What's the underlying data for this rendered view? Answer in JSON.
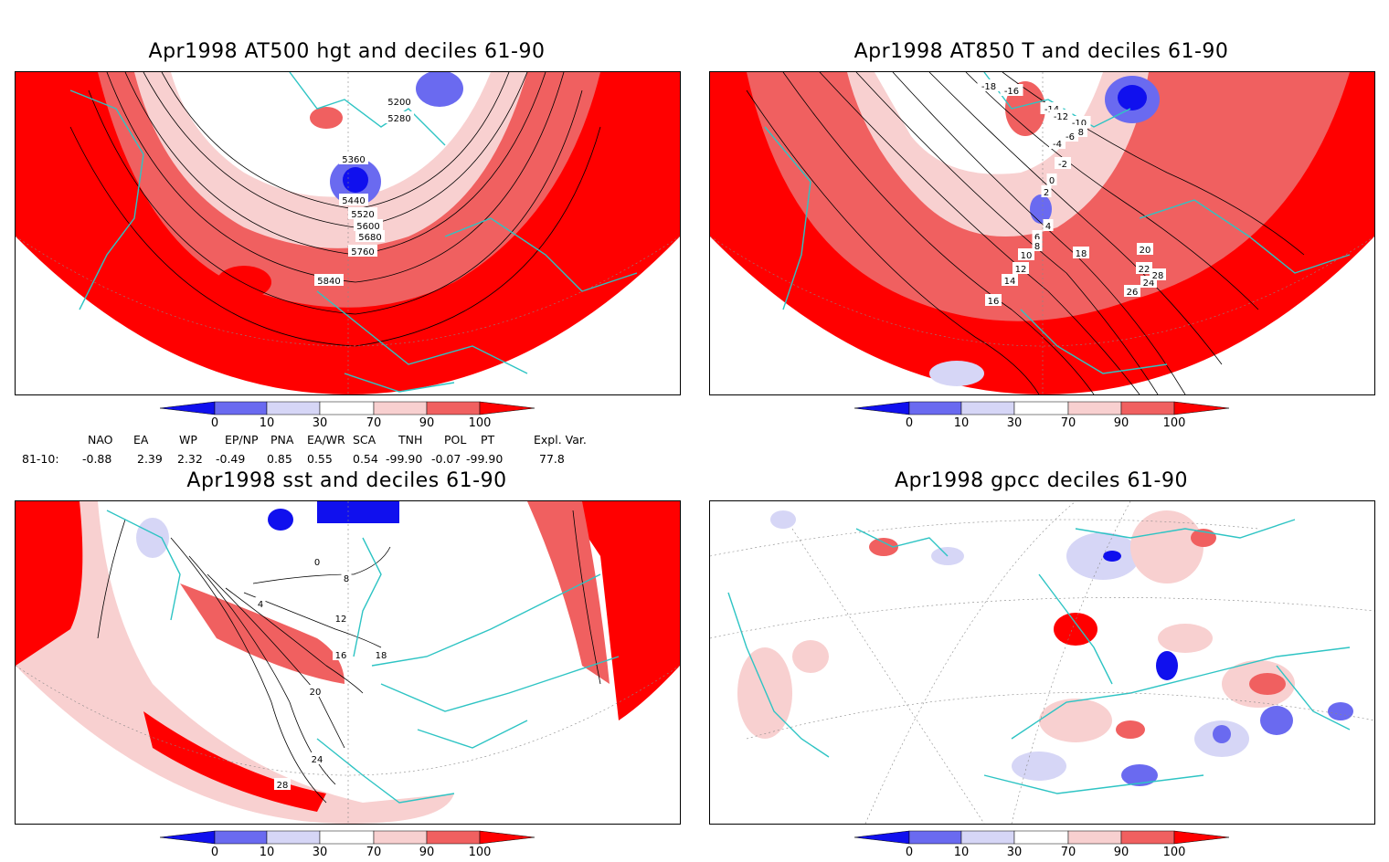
{
  "panels": [
    {
      "title": "Apr1998 AT500 hgt and deciles 61-90",
      "contour_labels": [
        "5200",
        "5280",
        "5360",
        "5440",
        "5520",
        "5600",
        "5680",
        "5760",
        "5840"
      ]
    },
    {
      "title": "Apr1998 AT850 T and deciles 61-90",
      "contour_labels": [
        "-18",
        "-16",
        "-14",
        "-12",
        "-10",
        "-8",
        "-6",
        "-4",
        "-2",
        "0",
        "2",
        "4",
        "6",
        "8",
        "10",
        "12",
        "14",
        "16",
        "18",
        "20",
        "22",
        "24",
        "26",
        "28"
      ]
    },
    {
      "title": "Apr1998 sst and deciles 61-90",
      "contour_labels": [
        "0",
        "4",
        "8",
        "12",
        "16",
        "18",
        "20",
        "24",
        "28"
      ]
    },
    {
      "title": "Apr1998 gpcc deciles 61-90",
      "contour_labels": []
    }
  ],
  "colorbar": {
    "ticks": [
      "0",
      "10",
      "30",
      "70",
      "90",
      "100"
    ],
    "colors": {
      "darkblue": "#1010ee",
      "midblue": "#6a6af0",
      "lightblue": "#d6d6f6",
      "white": "#ffffff",
      "lightred": "#f8d0d0",
      "midred": "#f06060",
      "darkred": "#ff0000"
    }
  },
  "indices": {
    "headers": [
      "NAO",
      "EA",
      "WP",
      "EP/NP",
      "PNA",
      "EA/WR",
      "SCA",
      "TNH",
      "POL",
      "PT",
      "Expl. Var."
    ],
    "row_label": "81-10:",
    "values": [
      "-0.88",
      "2.39",
      "2.32",
      "-0.49",
      "0.85",
      "0.55",
      "0.54",
      "-99.90",
      "-0.07",
      "-99.90",
      "77.8"
    ]
  },
  "map_colors": {
    "coast": "#2ec4c4",
    "grid": "#888888",
    "contour": "#000000"
  }
}
